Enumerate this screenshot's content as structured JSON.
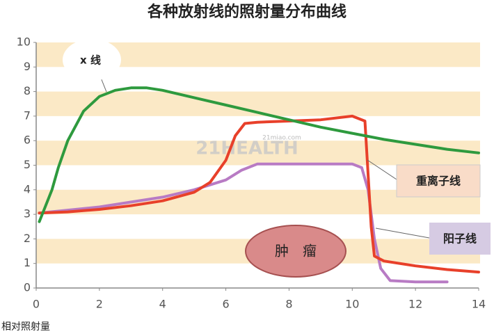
{
  "chart_data": {
    "type": "line",
    "title": "各种放射线的照射量分布曲线",
    "y_label": "相对照射量",
    "xlim": [
      0,
      14
    ],
    "xticks": [
      0,
      2,
      4,
      6,
      8,
      10,
      12,
      14
    ],
    "ylim": [
      0,
      10
    ],
    "yticks": [
      0,
      1,
      2,
      3,
      4,
      5,
      6,
      7,
      8,
      9,
      10
    ],
    "grid": "bands",
    "watermark": [
      "21HEALTH",
      "21miao.com"
    ],
    "annotations": [
      {
        "text": "肿　瘤"
      }
    ],
    "series": [
      {
        "name": "x 线",
        "color": "#2e9a3e",
        "x": [
          0.1,
          0.5,
          0.7,
          1,
          1.5,
          2,
          2.5,
          3,
          3.5,
          4,
          5,
          6,
          7,
          8,
          9,
          10,
          11,
          12,
          13,
          14
        ],
        "values": [
          2.7,
          4.0,
          4.9,
          6.0,
          7.2,
          7.8,
          8.05,
          8.15,
          8.15,
          8.05,
          7.75,
          7.45,
          7.15,
          6.85,
          6.55,
          6.3,
          6.05,
          5.85,
          5.65,
          5.5
        ]
      },
      {
        "name": "重离子线",
        "color": "#e8402a",
        "x": [
          0.1,
          1,
          2,
          3,
          4,
          5,
          5.5,
          6,
          6.3,
          6.6,
          7,
          8,
          9,
          10,
          10.4,
          10.6,
          10.7,
          11,
          12,
          13,
          14
        ],
        "values": [
          3.05,
          3.1,
          3.2,
          3.35,
          3.55,
          3.9,
          4.3,
          5.2,
          6.2,
          6.7,
          6.75,
          6.8,
          6.85,
          7.0,
          6.8,
          2.5,
          1.3,
          1.1,
          0.9,
          0.75,
          0.65
        ]
      },
      {
        "name": "阳子线",
        "color": "#b87bc4",
        "x": [
          0.1,
          2,
          4,
          5,
          6,
          6.5,
          7,
          8,
          9,
          10,
          10.3,
          10.5,
          10.7,
          10.9,
          11.2,
          12,
          13
        ],
        "values": [
          3.05,
          3.3,
          3.7,
          4.0,
          4.4,
          4.8,
          5.05,
          5.05,
          5.05,
          5.05,
          4.9,
          4.0,
          2.0,
          0.8,
          0.3,
          0.25,
          0.25
        ]
      }
    ]
  }
}
